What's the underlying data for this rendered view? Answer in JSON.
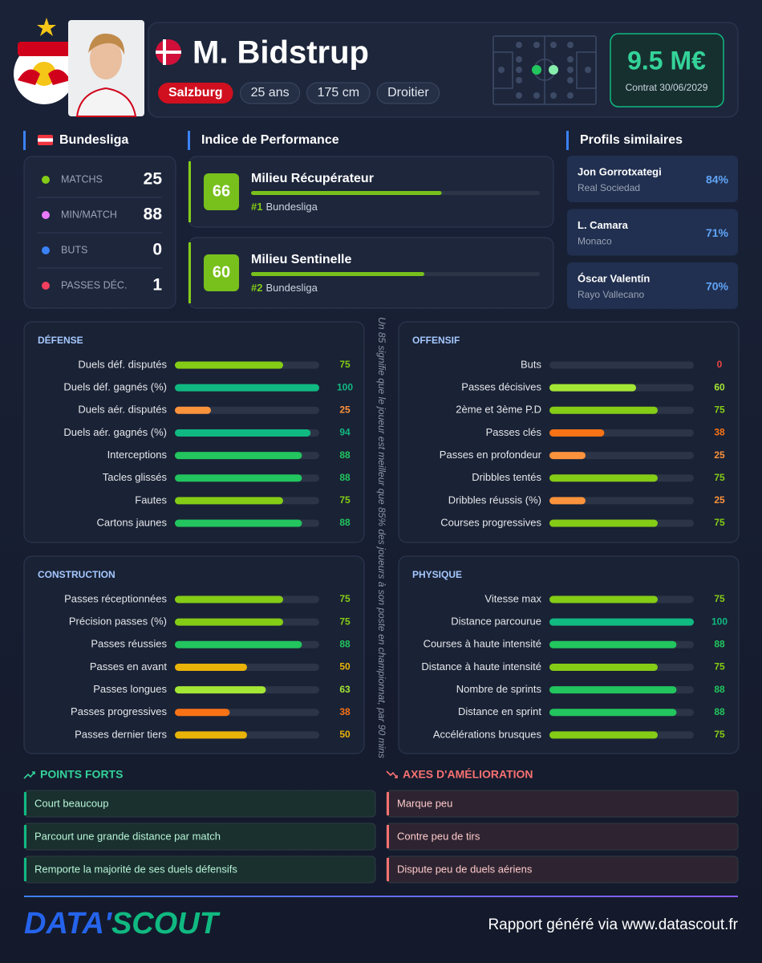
{
  "header": {
    "name": "M. Bidstrup",
    "club": "Salzburg",
    "tags": [
      "25 ans",
      "175 cm",
      "Droitier"
    ],
    "market_value": "9.5 M€",
    "contract": "Contrat 30/06/2029"
  },
  "league": {
    "title": "Bundesliga",
    "stats": [
      {
        "label": "MATCHS",
        "value": 25
      },
      {
        "label": "MIN/MATCH",
        "value": 88
      },
      {
        "label": "BUTS",
        "value": 0
      },
      {
        "label": "PASSES DÉC.",
        "value": 1
      }
    ]
  },
  "performance": {
    "title": "Indice de Performance",
    "items": [
      {
        "score": 66,
        "role": "Milieu Récupérateur",
        "rank": "#1",
        "league": "Bundesliga"
      },
      {
        "score": 60,
        "role": "Milieu Sentinelle",
        "rank": "#2",
        "league": "Bundesliga"
      }
    ]
  },
  "similar": {
    "title": "Profils similaires",
    "items": [
      {
        "name": "Jon Gorrotxategi",
        "club": "Real Sociedad",
        "similarity": "84%"
      },
      {
        "name": "L. Camara",
        "club": "Monaco",
        "similarity": "71%"
      },
      {
        "name": "Óscar Valentín",
        "club": "Rayo Vallecano",
        "similarity": "70%"
      }
    ]
  },
  "sections": [
    {
      "title": "DÉFENSE",
      "rows": [
        {
          "label": "Duels déf. disputés",
          "value": 75
        },
        {
          "label": "Duels déf. gagnés (%)",
          "value": 100
        },
        {
          "label": "Duels aér. disputés",
          "value": 25
        },
        {
          "label": "Duels aér. gagnés (%)",
          "value": 94
        },
        {
          "label": "Interceptions",
          "value": 88
        },
        {
          "label": "Tacles glissés",
          "value": 88
        },
        {
          "label": "Fautes",
          "value": 75
        },
        {
          "label": "Cartons jaunes",
          "value": 88
        }
      ]
    },
    {
      "title": "OFFENSIF",
      "rows": [
        {
          "label": "Buts",
          "value": 0
        },
        {
          "label": "Passes décisives",
          "value": 60
        },
        {
          "label": "2ème et 3ème P.D",
          "value": 75
        },
        {
          "label": "Passes clés",
          "value": 38
        },
        {
          "label": "Passes en profondeur",
          "value": 25
        },
        {
          "label": "Dribbles tentés",
          "value": 75
        },
        {
          "label": "Dribbles réussis (%)",
          "value": 25
        },
        {
          "label": "Courses progressives",
          "value": 75
        }
      ]
    },
    {
      "title": "CONSTRUCTION",
      "rows": [
        {
          "label": "Passes réceptionnées",
          "value": 75
        },
        {
          "label": "Précision passes (%)",
          "value": 75
        },
        {
          "label": "Passes réussies",
          "value": 88
        },
        {
          "label": "Passes en avant",
          "value": 50
        },
        {
          "label": "Passes longues",
          "value": 63
        },
        {
          "label": "Passes progressives",
          "value": 38
        },
        {
          "label": "Passes dernier tiers",
          "value": 50
        }
      ]
    },
    {
      "title": "PHYSIQUE",
      "rows": [
        {
          "label": "Vitesse max",
          "value": 75
        },
        {
          "label": "Distance parcourue",
          "value": 100
        },
        {
          "label": "Courses à haute intensité",
          "value": 88
        },
        {
          "label": "Distance à haute intensité",
          "value": 75
        },
        {
          "label": "Nombre de sprints",
          "value": 88
        },
        {
          "label": "Distance en sprint",
          "value": 88
        },
        {
          "label": "Accélérations brusques",
          "value": 75
        }
      ]
    }
  ],
  "note": "Un 85 signifie que le joueur est meilleur que 85% des joueurs à son poste en championnat, par 90 mins",
  "strengths": {
    "title": "POINTS FORTS",
    "items": [
      "Court beaucoup",
      "Parcourt une grande distance par match",
      "Remporte la majorité de ses duels défensifs"
    ]
  },
  "improvements": {
    "title": "AXES D'AMÉLIORATION",
    "items": [
      "Marque peu",
      "Contre peu de tirs",
      "Dispute peu de duels aériens"
    ]
  },
  "footer": {
    "logo": [
      "DATA'",
      "SCOUT"
    ],
    "text": "Rapport généré via www.datascout.fr"
  }
}
